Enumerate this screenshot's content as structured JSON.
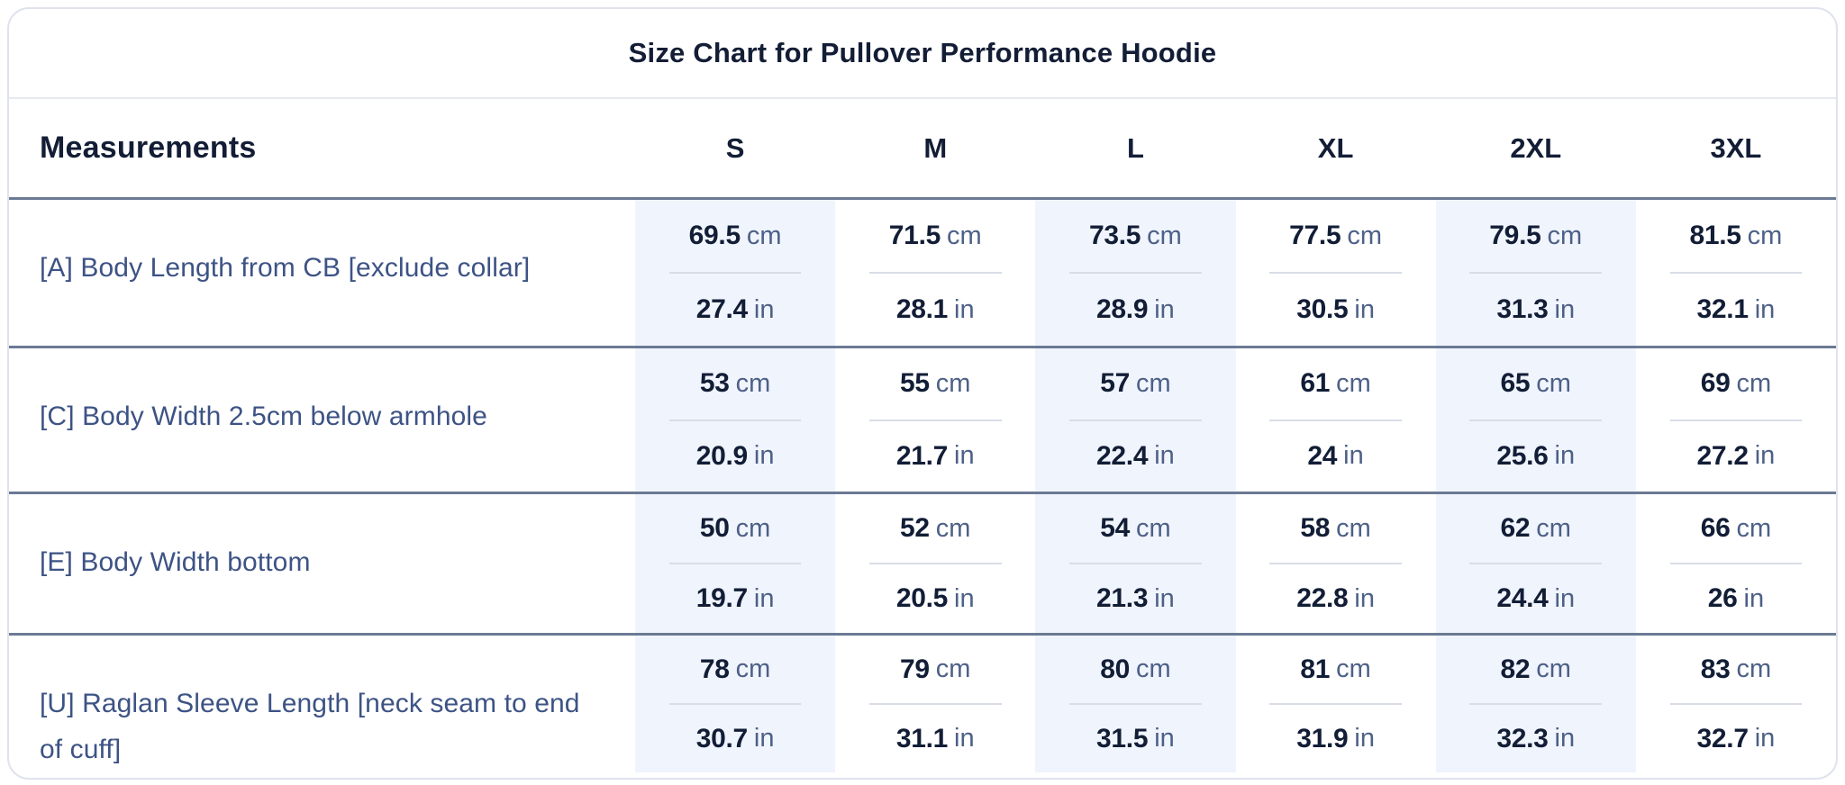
{
  "title": "Size Chart for Pullover Performance Hoodie",
  "table": {
    "measurements_header": "Measurements",
    "sizes": [
      "S",
      "M",
      "L",
      "XL",
      "2XL",
      "3XL"
    ],
    "unit_cm": "cm",
    "unit_in": "in",
    "shaded_columns": [
      0,
      2,
      4
    ],
    "rows": [
      {
        "label": "[A] Body Length from CB [exclude collar]",
        "cm": [
          "69.5",
          "71.5",
          "73.5",
          "77.5",
          "79.5",
          "81.5"
        ],
        "in": [
          "27.4",
          "28.1",
          "28.9",
          "30.5",
          "31.3",
          "32.1"
        ]
      },
      {
        "label": "[C] Body Width 2.5cm below armhole",
        "cm": [
          "53",
          "55",
          "57",
          "61",
          "65",
          "69"
        ],
        "in": [
          "20.9",
          "21.7",
          "22.4",
          "24",
          "25.6",
          "27.2"
        ]
      },
      {
        "label": "[E] Body Width bottom",
        "cm": [
          "50",
          "52",
          "54",
          "58",
          "62",
          "66"
        ],
        "in": [
          "19.7",
          "20.5",
          "21.3",
          "22.8",
          "24.4",
          "26"
        ]
      },
      {
        "label": "[U] Raglan Sleeve Length [neck seam to end of cuff]",
        "cm": [
          "78",
          "79",
          "80",
          "81",
          "82",
          "83"
        ],
        "in": [
          "30.7",
          "31.1",
          "31.5",
          "31.9",
          "32.3",
          "32.7"
        ]
      }
    ]
  },
  "colors": {
    "heading_text": "#131d35",
    "row_label_text": "#3d5385",
    "value_text": "#121d36",
    "unit_text": "#4d6087",
    "row_separator": "#6b7a94",
    "column_shading": "#f0f4fc",
    "card_border": "#e0e3ee"
  }
}
